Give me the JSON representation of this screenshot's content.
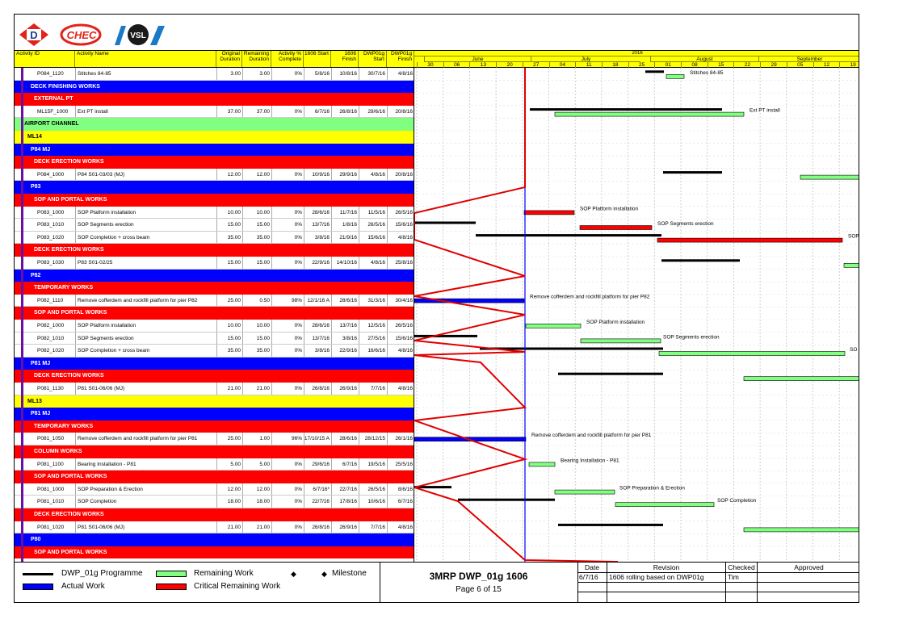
{
  "logos": [
    "D",
    "CHEC",
    "VSL"
  ],
  "header": {
    "activity_id": "Activity ID",
    "activity_name": "Activity Name",
    "orig_dur": "Original Duration",
    "rem_dur": "Remaining Duration",
    "pct": "Activity % Complete",
    "s1606": "1606 Start",
    "f1606": "1606 Finish",
    "sdwp": "DWP01g Start",
    "fdwp": "DWP01g Finish"
  },
  "timeline": {
    "year": "2016",
    "months": [
      {
        "label": "June"
      },
      {
        "label": "July"
      },
      {
        "label": "August"
      },
      {
        "label": "September"
      }
    ],
    "weeks": [
      "30",
      "06",
      "13",
      "20",
      "27",
      "04",
      "11",
      "18",
      "25",
      "01",
      "08",
      "15",
      "22",
      "29",
      "05",
      "12",
      "19"
    ]
  },
  "rows": [
    {
      "type": "task",
      "id": "P084_1120",
      "name": "Stitches 84-85",
      "od": "3.00",
      "rd": "3.00",
      "pct": "0%",
      "s": "5/8/16",
      "f": "10/8/16",
      "ds": "30/7/16",
      "df": "4/8/16"
    },
    {
      "type": "blue",
      "label": "DECK FINISHING WORKS"
    },
    {
      "type": "red",
      "label": "EXTERNAL PT"
    },
    {
      "type": "task",
      "id": "ML15F_1000",
      "name": "Ext PT install",
      "od": "37.00",
      "rd": "37.00",
      "pct": "0%",
      "s": "6/7/16",
      "f": "26/8/16",
      "ds": "29/6/16",
      "df": "20/8/16"
    },
    {
      "type": "green",
      "label": "AIRPORT CHANNEL"
    },
    {
      "type": "yellow",
      "label": "ML14"
    },
    {
      "type": "blue",
      "label": "P84 MJ"
    },
    {
      "type": "red",
      "label": "DECK ERECTION WORKS"
    },
    {
      "type": "task",
      "id": "P084_1000",
      "name": "P84 S01-03/03 (MJ)",
      "od": "12.00",
      "rd": "12.00",
      "pct": "0%",
      "s": "10/9/16",
      "f": "29/9/16",
      "ds": "4/8/16",
      "df": "20/8/16"
    },
    {
      "type": "blue",
      "label": "P83"
    },
    {
      "type": "red",
      "label": "SOP AND PORTAL WORKS"
    },
    {
      "type": "task",
      "id": "P083_1000",
      "name": "SOP Platform installation",
      "od": "10.00",
      "rd": "10.00",
      "pct": "0%",
      "s": "28/6/16",
      "f": "11/7/16",
      "ds": "11/5/16",
      "df": "26/5/16"
    },
    {
      "type": "task",
      "id": "P083_1010",
      "name": "SOP Segments erection",
      "od": "15.00",
      "rd": "15.00",
      "pct": "0%",
      "s": "13/7/16",
      "f": "1/8/16",
      "ds": "26/5/16",
      "df": "15/6/16"
    },
    {
      "type": "task",
      "id": "P083_1020",
      "name": "SOP Completion + cross beam",
      "od": "35.00",
      "rd": "35.00",
      "pct": "0%",
      "s": "3/8/16",
      "f": "21/9/16",
      "ds": "15/6/16",
      "df": "4/8/16"
    },
    {
      "type": "red",
      "label": "DECK ERECTION WORKS"
    },
    {
      "type": "task",
      "id": "P083_1030",
      "name": "P83 S01-02/25",
      "od": "15.00",
      "rd": "15.00",
      "pct": "0%",
      "s": "22/9/16",
      "f": "14/10/16",
      "ds": "4/8/16",
      "df": "25/8/16"
    },
    {
      "type": "blue",
      "label": "P82"
    },
    {
      "type": "red",
      "label": "TEMPORARY WORKS"
    },
    {
      "type": "task",
      "id": "P082_1110",
      "name": "Remove cofferdem and rockfill platform for pier P82",
      "od": "25.00",
      "rd": "0.50",
      "pct": "98%",
      "s": "12/1/16 A",
      "f": "28/6/16",
      "ds": "31/3/16",
      "df": "30/4/16"
    },
    {
      "type": "red",
      "label": "SOP AND PORTAL WORKS"
    },
    {
      "type": "task",
      "id": "P082_1000",
      "name": "SOP Platform installation",
      "od": "10.00",
      "rd": "10.00",
      "pct": "0%",
      "s": "28/6/16",
      "f": "13/7/16",
      "ds": "12/5/16",
      "df": "26/5/16"
    },
    {
      "type": "task",
      "id": "P082_1010",
      "name": "SOP Segments erection",
      "od": "15.00",
      "rd": "15.00",
      "pct": "0%",
      "s": "13/7/16",
      "f": "3/8/16",
      "ds": "27/5/16",
      "df": "15/6/16"
    },
    {
      "type": "task",
      "id": "P082_1020",
      "name": "SOP Completion + cross beam",
      "od": "35.00",
      "rd": "35.00",
      "pct": "0%",
      "s": "3/8/16",
      "f": "22/9/16",
      "ds": "16/6/16",
      "df": "4/8/16"
    },
    {
      "type": "blue",
      "label": "P81 MJ"
    },
    {
      "type": "red",
      "label": "DECK ERECTION WORKS"
    },
    {
      "type": "task",
      "id": "P081_1130",
      "name": "P81 S01-06/06 (MJ)",
      "od": "21.00",
      "rd": "21.00",
      "pct": "0%",
      "s": "26/8/16",
      "f": "26/9/16",
      "ds": "7/7/16",
      "df": "4/8/16"
    },
    {
      "type": "yellow",
      "label": "ML13"
    },
    {
      "type": "blue",
      "label": "P81 MJ"
    },
    {
      "type": "red",
      "label": "TEMPORARY WORKS"
    },
    {
      "type": "task",
      "id": "P081_1050",
      "name": "Remove cofferdem and rockfill platform for pier P81",
      "od": "25.00",
      "rd": "1.00",
      "pct": "96%",
      "s": "17/10/15 A",
      "f": "28/6/16",
      "ds": "28/12/15",
      "df": "26/1/16"
    },
    {
      "type": "red",
      "label": "COLUMN WORKS"
    },
    {
      "type": "task",
      "id": "P081_1100",
      "name": "Bearing Installation - P81",
      "od": "5.00",
      "rd": "5.00",
      "pct": "0%",
      "s": "29/6/16",
      "f": "6/7/16",
      "ds": "19/5/16",
      "df": "25/5/16"
    },
    {
      "type": "red",
      "label": "SOP AND PORTAL WORKS"
    },
    {
      "type": "task",
      "id": "P081_1000",
      "name": "SOP Preparation & Erection",
      "od": "12.00",
      "rd": "12.00",
      "pct": "0%",
      "s": "6/7/16*",
      "f": "22/7/16",
      "ds": "26/5/16",
      "df": "8/6/16"
    },
    {
      "type": "task",
      "id": "P081_1010",
      "name": "SOP Completion",
      "od": "18.00",
      "rd": "18.00",
      "pct": "0%",
      "s": "22/7/16",
      "f": "17/8/16",
      "ds": "10/6/16",
      "df": "6/7/16"
    },
    {
      "type": "red",
      "label": "DECK ERECTION WORKS"
    },
    {
      "type": "task",
      "id": "P081_1020",
      "name": "P81 S01-06/06 (MJ)",
      "od": "21.00",
      "rd": "21.00",
      "pct": "0%",
      "s": "26/8/16",
      "f": "26/9/16",
      "ds": "7/7/16",
      "df": "4/8/16"
    },
    {
      "type": "blue",
      "label": "P80"
    },
    {
      "type": "red",
      "label": "SOP AND PORTAL WORKS"
    }
  ],
  "bar_labels": [
    "Stitches 84-85",
    "Ext PT install",
    "SOP Platform installation",
    "SOP Segments erection",
    "SOP",
    "Remove cofferdem and rockfill platform for pier P82",
    "SOP Platform installation",
    "SOP Segments erection",
    "SO",
    "Remove cofferdem and rockfill platform for pier P81",
    "Bearing Installation - P81",
    "SOP Preparation & Erection",
    "SOP Completion"
  ],
  "legend": {
    "programme": "DWP_01g Programme",
    "remaining": "Remaining Work",
    "milestone": "Milestone",
    "actual": "Actual Work",
    "critical": "Critical Remaining Work",
    "colors": {
      "programme": "#000000",
      "remaining": "#80ff80",
      "actual": "#0000ff",
      "critical": "#ff0000"
    }
  },
  "title": {
    "name": "3MRP DWP_01g 1606",
    "page": "Page 6 of 15"
  },
  "revision": {
    "h_date": "Date",
    "h_rev": "Revision",
    "h_chk": "Checked",
    "h_app": "Approved",
    "date": "6/7/16",
    "rev": "1606 rolling based on DWP01g",
    "chk": "Tim",
    "app": ""
  }
}
